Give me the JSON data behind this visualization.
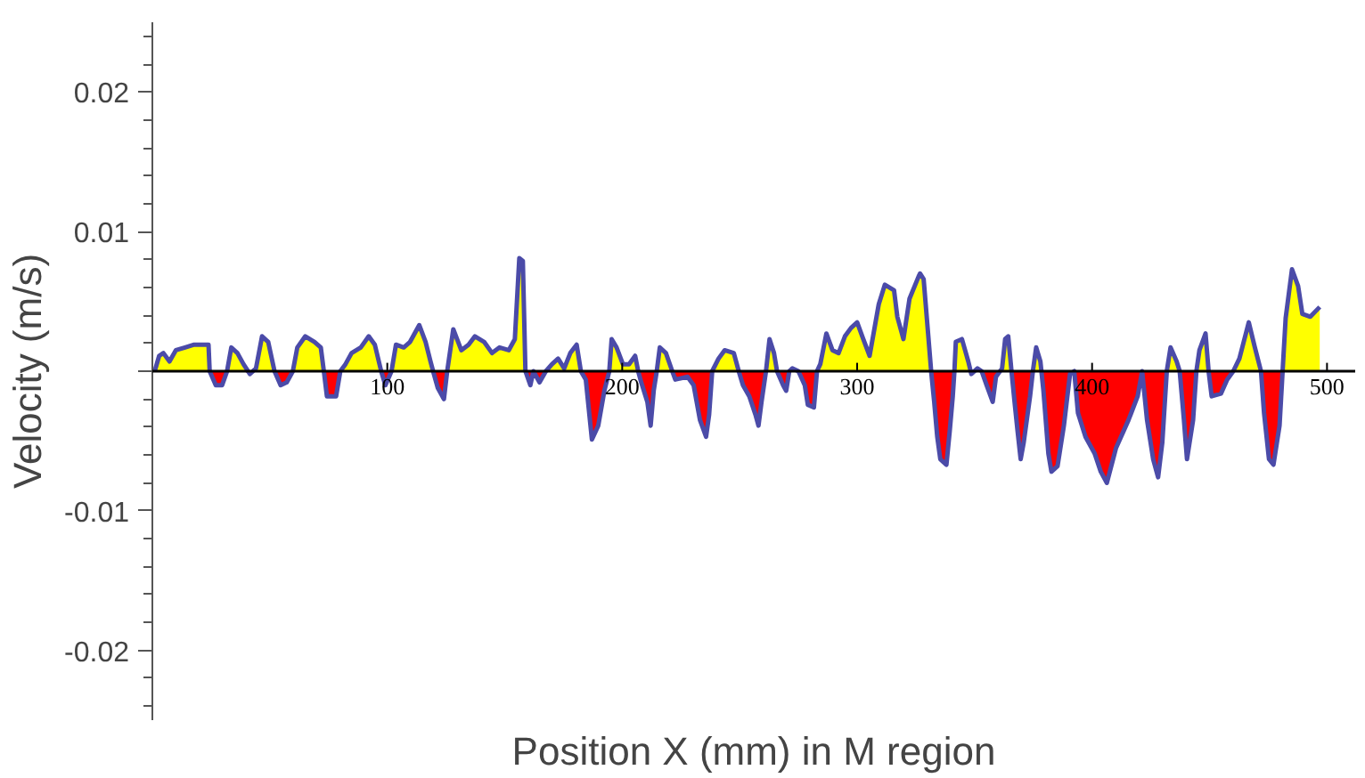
{
  "chart_data": {
    "type": "area",
    "xlabel": "Position X (mm) in M region",
    "ylabel": "Velocity (m/s)",
    "xlim": [
      0,
      512
    ],
    "xticks": [
      100,
      200,
      300,
      400,
      500
    ],
    "ylim": [
      -0.025,
      0.025
    ],
    "yticks": [
      -0.02,
      -0.01,
      {
        "value": 0,
        "label": null
      },
      0.01,
      0.02
    ],
    "grid": false,
    "x": [
      1,
      2.9,
      4.7,
      7.3,
      10,
      13.9,
      17.8,
      23.9,
      24.4,
      27,
      29.7,
      31.8,
      33.6,
      36.2,
      38.8,
      41.5,
      44.1,
      46.7,
      49.3,
      52,
      54.6,
      57.2,
      59.8,
      61.7,
      65.1,
      69,
      71.7,
      73,
      74.3,
      78.2,
      80,
      82.2,
      84.8,
      88.7,
      92.1,
      94.7,
      97.4,
      99.2,
      101.8,
      103.7,
      107,
      109.7,
      113.6,
      116.3,
      118.4,
      119.5,
      121.5,
      124.1,
      125.5,
      128.1,
      131.5,
      134.6,
      137.3,
      141.2,
      144.6,
      147.8,
      151.7,
      154.3,
      156.2,
      157.7,
      158.8,
      160.9,
      162.2,
      164.8,
      167.5,
      170.1,
      172.7,
      175.3,
      177.9,
      180.6,
      182.4,
      184.5,
      187.1,
      189.8,
      192.4,
      194.5,
      195.5,
      197.6,
      200.3,
      202.9,
      205.5,
      206.8,
      208.1,
      210.7,
      212.1,
      213.4,
      214.7,
      216,
      218.6,
      221.3,
      222.6,
      227.8,
      230.4,
      233.1,
      235.7,
      237,
      238.3,
      241,
      243.6,
      247.5,
      249.6,
      251.4,
      254.1,
      256.7,
      258,
      259.3,
      261.2,
      262.7,
      264.6,
      265.9,
      268.5,
      269.8,
      271.1,
      272.4,
      275,
      277.7,
      279,
      281.6,
      282.9,
      284.3,
      286.9,
      289.5,
      292.1,
      294.8,
      297.4,
      300,
      302.6,
      305.3,
      309.2,
      311.8,
      315.7,
      317.1,
      319.7,
      322.3,
      326.2,
      326.8,
      328.3,
      330.2,
      331.5,
      332.8,
      334.1,
      335.4,
      338,
      339.4,
      340.7,
      341.4,
      342,
      344.6,
      347.3,
      348.6,
      351.2,
      353,
      355.1,
      357.7,
      359.1,
      361.7,
      363,
      364.3,
      365.7,
      367,
      368.3,
      369.6,
      370.9,
      373.6,
      374.8,
      376.2,
      378,
      379.3,
      381.4,
      382.7,
      385.3,
      388,
      390.6,
      392.4,
      394,
      397.2,
      401.1,
      403.7,
      406.3,
      410.2,
      415.5,
      419.4,
      421.3,
      423.4,
      426,
      428.1,
      429.9,
      431.8,
      433.4,
      436,
      437.3,
      439.1,
      440.4,
      443,
      444.4,
      445.7,
      448.3,
      449.6,
      450.9,
      454.9,
      457.5,
      460.1,
      462.7,
      466.7,
      469.3,
      471.9,
      473.2,
      475.3,
      477.2,
      479.8,
      481.1,
      482.4,
      485.1,
      487.7,
      489.5,
      492.9,
      496.9
    ],
    "series": [
      {
        "color": "#ffff00",
        "values": [
          0,
          0.0011,
          0.0013,
          0.0007,
          0.0015,
          0.0017,
          0.0019,
          0.0019,
          0,
          0,
          0,
          0,
          0.0017,
          0.0013,
          0.0005,
          0,
          0.0002,
          0.0025,
          0.0021,
          0,
          0,
          0,
          0,
          0.0017,
          0.0025,
          0.0021,
          0.0017,
          0,
          0,
          0,
          0,
          0.0005,
          0.0013,
          0.0017,
          0.0025,
          0.0019,
          0,
          0,
          0,
          0.0019,
          0.0017,
          0.0021,
          0.0033,
          0.0021,
          0.0007,
          0,
          0,
          0,
          0,
          0.003,
          0.0015,
          0.0019,
          0.0025,
          0.0021,
          0.0013,
          0.0017,
          0.0015,
          0.0023,
          0.0081,
          0.0079,
          0,
          0,
          0,
          0,
          0,
          0.0005,
          0.0009,
          0.0002,
          0.0013,
          0.0019,
          0,
          0,
          0,
          0,
          0,
          0,
          0.0023,
          0.0017,
          0.0005,
          0.0005,
          0.0011,
          0,
          0,
          0,
          0,
          0,
          0,
          0.0017,
          0.0013,
          0,
          0,
          0,
          0,
          0,
          0,
          0,
          0,
          0.0009,
          0.0015,
          0.0013,
          0,
          0,
          0,
          0,
          0,
          0,
          0,
          0.0023,
          0.0013,
          0,
          0,
          0,
          0,
          0.0002,
          0,
          0,
          0,
          0,
          0,
          0.0005,
          0.0027,
          0.0015,
          0.0013,
          0.0025,
          0.0031,
          0.0035,
          0.0023,
          0.0011,
          0.0048,
          0.0062,
          0.0058,
          0.0039,
          0.0023,
          0.0052,
          0.0068,
          0.007,
          0.0066,
          0.0027,
          0,
          0,
          0,
          0,
          0,
          0,
          0,
          0,
          0.0021,
          0.0023,
          0.0007,
          0,
          0.0002,
          0,
          0,
          0,
          0,
          0.0002,
          0.0023,
          0.0025,
          0,
          0,
          0,
          0,
          0,
          0,
          0,
          0.0017,
          0.0007,
          0,
          0,
          0,
          0,
          0,
          0,
          0,
          0,
          0,
          0,
          0,
          0,
          0,
          0,
          0,
          0,
          0,
          0,
          0,
          0,
          0,
          0.0017,
          0.0007,
          0,
          0,
          0,
          0,
          0,
          0.0015,
          0.0027,
          0,
          0,
          0,
          0,
          0,
          0.0009,
          0.0035,
          0.0017,
          0,
          0,
          0,
          0,
          0,
          0,
          0.0038,
          0.0073,
          0.0061,
          0.0041,
          0.0039,
          0.0046
        ]
      },
      {
        "color": "#ff0000",
        "values": [
          0,
          0,
          0,
          0,
          0,
          0,
          0,
          0,
          0,
          -0.001,
          -0.001,
          0,
          0,
          0,
          0,
          -0.0002,
          0,
          0,
          0,
          0,
          -0.001,
          -0.0008,
          0,
          0,
          0,
          0,
          0,
          0,
          -0.0018,
          -0.0018,
          0,
          0,
          0,
          0,
          0,
          0,
          0,
          -0.001,
          0,
          0,
          0,
          0,
          0,
          0,
          0,
          0,
          -0.0012,
          -0.002,
          0,
          0,
          0,
          0,
          0,
          0,
          0,
          0,
          0,
          0,
          0,
          0,
          0,
          -0.001,
          0,
          -0.0008,
          0,
          0,
          0,
          0,
          0,
          0,
          0,
          -0.0006,
          -0.0049,
          -0.0039,
          -0.0014,
          0,
          0,
          0,
          0,
          0,
          0,
          0,
          -0.0008,
          -0.0022,
          -0.0039,
          -0.0014,
          0,
          0,
          0,
          0,
          -0.0006,
          -0.0004,
          -0.001,
          -0.0035,
          -0.0047,
          -0.0031,
          0,
          0,
          0,
          0,
          0,
          -0.001,
          -0.0018,
          -0.0031,
          -0.0039,
          -0.0022,
          0,
          0,
          0,
          0,
          -0.001,
          -0.0014,
          0,
          0,
          0,
          -0.001,
          -0.0024,
          -0.0026,
          0,
          0,
          0,
          0,
          0,
          0,
          0,
          0,
          0,
          0,
          0,
          0,
          0,
          0,
          0,
          0,
          0,
          0,
          0,
          0,
          0,
          -0.0022,
          -0.0047,
          -0.0063,
          -0.0067,
          -0.0043,
          -0.0018,
          0,
          0,
          0,
          0,
          -0.0002,
          0,
          0,
          -0.001,
          -0.0022,
          -0.0004,
          0,
          0,
          0,
          0,
          -0.0022,
          -0.0043,
          -0.0063,
          -0.0051,
          -0.0018,
          0,
          0,
          0,
          -0.0014,
          -0.0059,
          -0.0072,
          -0.0068,
          -0.0039,
          -0.0002,
          0,
          -0.003,
          -0.0047,
          -0.0059,
          -0.0072,
          -0.008,
          -0.0055,
          -0.0035,
          -0.0018,
          0,
          -0.0035,
          -0.0063,
          -0.0076,
          -0.0051,
          0,
          0,
          0,
          0,
          -0.0035,
          -0.0063,
          -0.0035,
          0,
          0,
          0,
          0,
          -0.0018,
          -0.0016,
          -0.0006,
          0,
          0,
          0,
          0,
          0,
          -0.003,
          -0.0063,
          -0.0067,
          -0.0039,
          0,
          0,
          0,
          0,
          0,
          0,
          0
        ]
      },
      {
        "type": "line",
        "color": "#4b4ba8",
        "values": [
          0,
          0.0011,
          0.0013,
          0.0007,
          0.0015,
          0.0017,
          0.0019,
          0.0019,
          0,
          -0.001,
          -0.001,
          0,
          0.0017,
          0.0013,
          0.0005,
          -0.0002,
          0.0002,
          0.0025,
          0.0021,
          0,
          -0.001,
          -0.0008,
          0,
          0.0017,
          0.0025,
          0.0021,
          0.0017,
          0,
          -0.0018,
          -0.0018,
          0,
          0.0005,
          0.0013,
          0.0017,
          0.0025,
          0.0019,
          0,
          -0.001,
          0,
          0.0019,
          0.0017,
          0.0021,
          0.0033,
          0.0021,
          0.0007,
          0,
          -0.0012,
          -0.002,
          0,
          0.003,
          0.0015,
          0.0019,
          0.0025,
          0.0021,
          0.0013,
          0.0017,
          0.0015,
          0.0023,
          0.0081,
          0.0079,
          0,
          -0.001,
          0,
          -0.0008,
          0,
          0.0005,
          0.0009,
          0.0002,
          0.0013,
          0.0019,
          0,
          -0.0006,
          -0.0049,
          -0.0039,
          -0.0014,
          0,
          0.0023,
          0.0017,
          0.0005,
          0.0005,
          0.0011,
          0,
          -0.0008,
          -0.0022,
          -0.0039,
          -0.0014,
          0,
          0.0017,
          0.0013,
          0,
          -0.0006,
          -0.0004,
          -0.001,
          -0.0035,
          -0.0047,
          -0.0031,
          0,
          0.0009,
          0.0015,
          0.0013,
          0,
          -0.001,
          -0.0018,
          -0.0031,
          -0.0039,
          -0.0022,
          0,
          0.0023,
          0.0013,
          0,
          -0.001,
          -0.0014,
          0,
          0.0002,
          0,
          -0.001,
          -0.0024,
          -0.0026,
          0,
          0.0005,
          0.0027,
          0.0015,
          0.0013,
          0.0025,
          0.0031,
          0.0035,
          0.0023,
          0.0011,
          0.0048,
          0.0062,
          0.0058,
          0.0039,
          0.0023,
          0.0052,
          0.0068,
          0.007,
          0.0066,
          0.0027,
          0,
          -0.0022,
          -0.0047,
          -0.0063,
          -0.0067,
          -0.0043,
          -0.0018,
          0,
          0.0021,
          0.0023,
          0.0007,
          -0.0002,
          0.0002,
          0,
          -0.001,
          -0.0022,
          -0.0004,
          0.0002,
          0.0023,
          0.0025,
          0,
          -0.0022,
          -0.0043,
          -0.0063,
          -0.0051,
          -0.0018,
          0,
          0.0017,
          0.0007,
          -0.0014,
          -0.0059,
          -0.0072,
          -0.0068,
          -0.0039,
          -0.0002,
          0,
          -0.003,
          -0.0047,
          -0.0059,
          -0.0072,
          -0.008,
          -0.0055,
          -0.0035,
          -0.0018,
          0,
          -0.0035,
          -0.0063,
          -0.0076,
          -0.0051,
          0,
          0.0017,
          0.0007,
          0,
          -0.0035,
          -0.0063,
          -0.0035,
          0,
          0.0015,
          0.0027,
          0,
          -0.0018,
          -0.0016,
          -0.0006,
          0,
          0.0009,
          0.0035,
          0.0017,
          0,
          -0.003,
          -0.0063,
          -0.0067,
          -0.0039,
          0,
          0.0038,
          0.0073,
          0.0061,
          0.0041,
          0.0039,
          0.0046
        ]
      }
    ]
  }
}
